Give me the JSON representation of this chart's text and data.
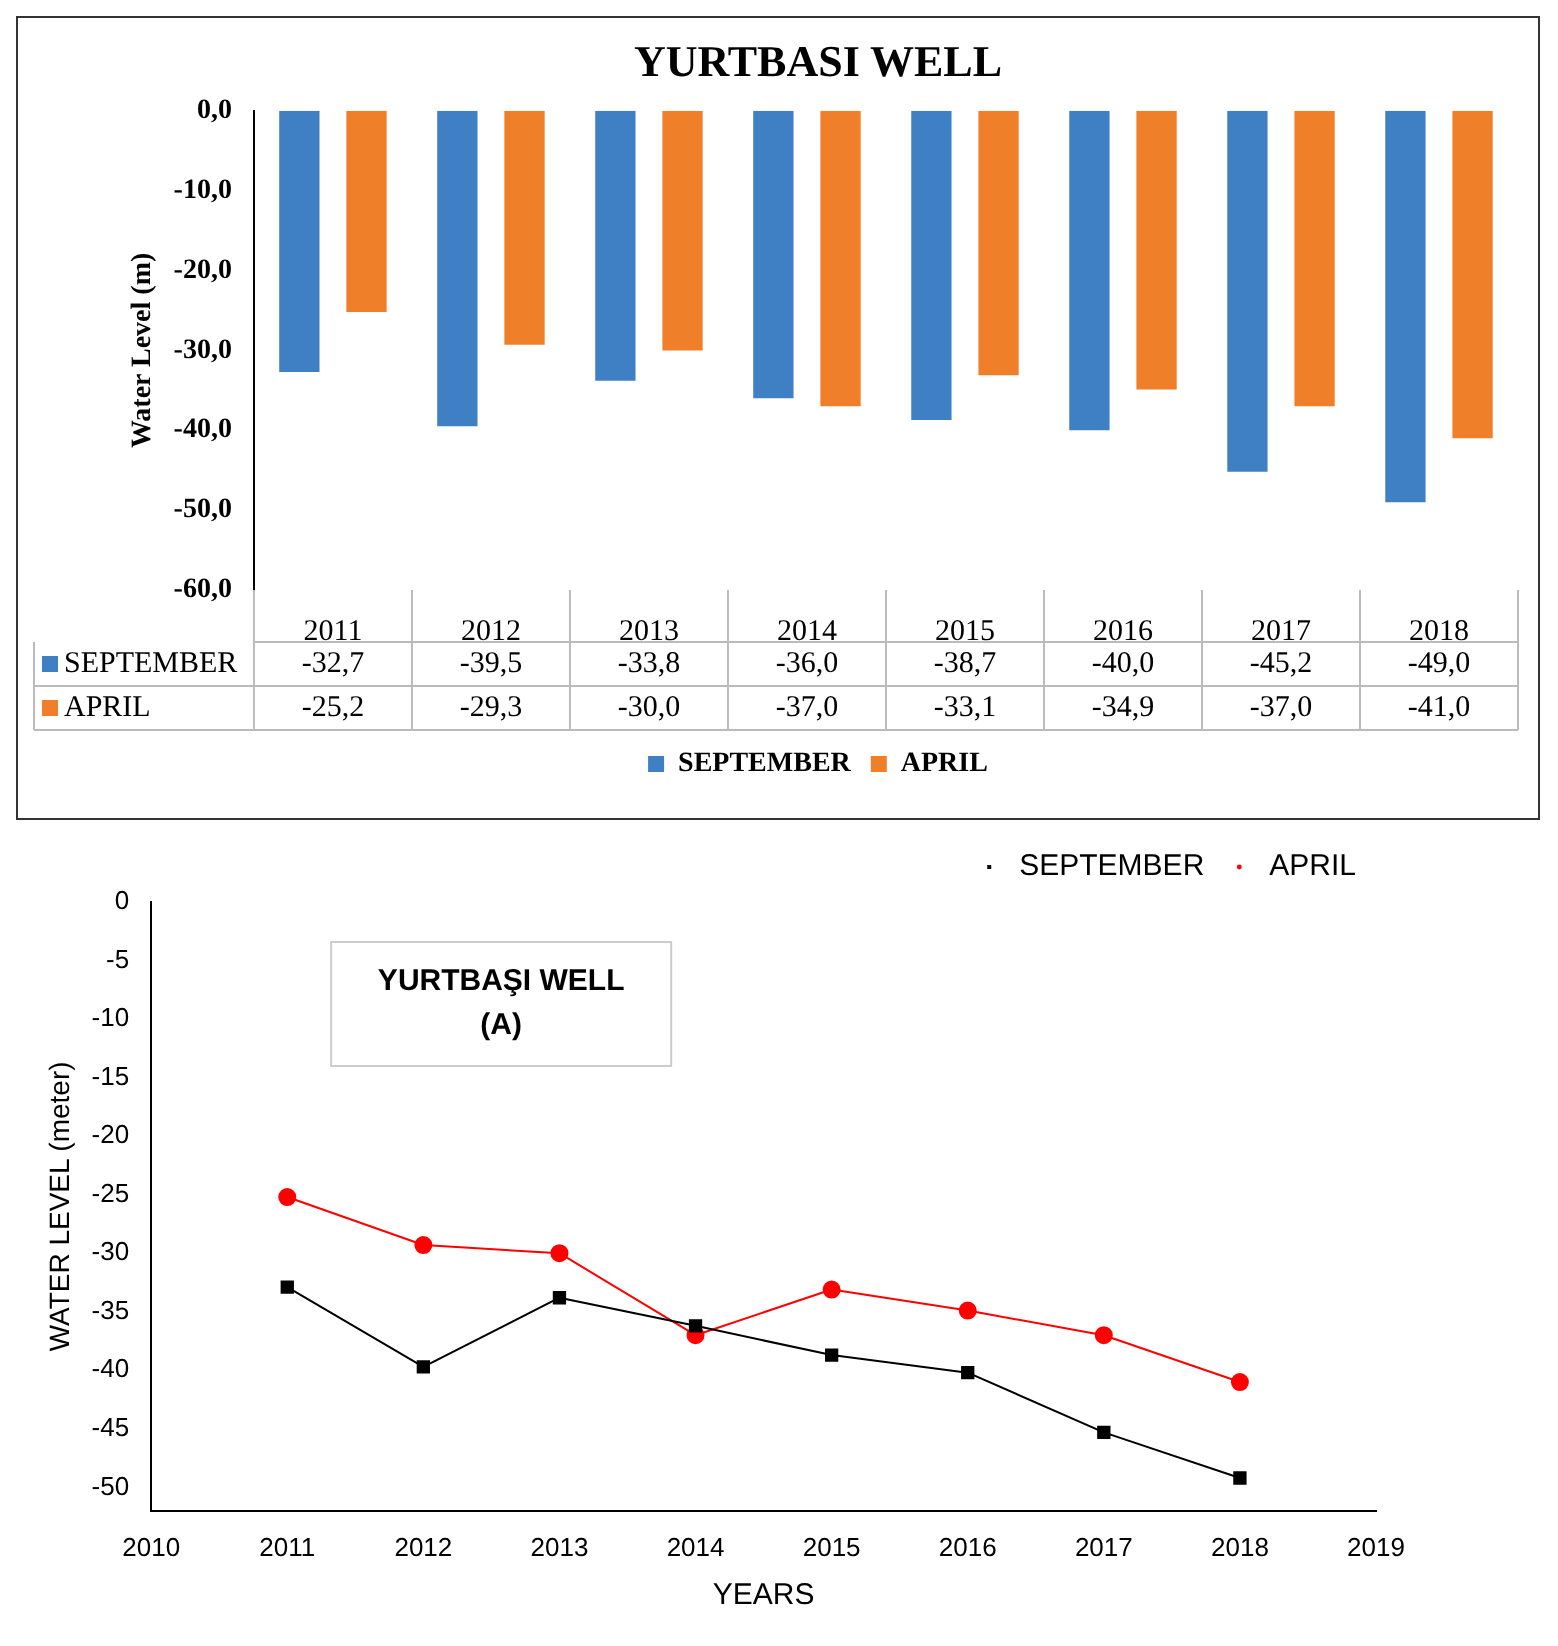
{
  "chart_data": [
    {
      "type": "bar",
      "title": "YURTBASI WELL",
      "ylabel": "Water Level (m)",
      "categories": [
        "2011",
        "2012",
        "2013",
        "2014",
        "2015",
        "2016",
        "2017",
        "2018"
      ],
      "series": [
        {
          "name": "SEPTEMBER",
          "color": "#3f7fc4",
          "values": [
            -32.7,
            -39.5,
            -33.8,
            -36.0,
            -38.7,
            -40.0,
            -45.2,
            -49.0
          ],
          "value_labels": [
            "-32,7",
            "-39,5",
            "-33,8",
            "-36,0",
            "-38,7",
            "-40,0",
            "-45,2",
            "-49,0"
          ]
        },
        {
          "name": "APRIL",
          "color": "#f07f2a",
          "values": [
            -25.2,
            -29.3,
            -30.0,
            -37.0,
            -33.1,
            -34.9,
            -37.0,
            -41.0
          ],
          "value_labels": [
            "-25,2",
            "-29,3",
            "-30,0",
            "-37,0",
            "-33,1",
            "-34,9",
            "-37,0",
            "-41,0"
          ]
        }
      ],
      "ylim": [
        -60,
        0
      ],
      "yticks": [
        {
          "value": 0,
          "label": "0,0"
        },
        {
          "value": -10,
          "label": "-10,0"
        },
        {
          "value": -20,
          "label": "-20,0"
        },
        {
          "value": -30,
          "label": "-30,0"
        },
        {
          "value": -40,
          "label": "-40,0"
        },
        {
          "value": -50,
          "label": "-50,0"
        },
        {
          "value": -60,
          "label": "-60,0"
        }
      ],
      "legend": "bottom"
    },
    {
      "type": "line",
      "title": "YURTBAŞI WELL",
      "subtitle": "(A)",
      "xlabel": "YEARS",
      "ylabel": "WATER LEVEL (meter)",
      "x": [
        2011,
        2012,
        2013,
        2014,
        2015,
        2016,
        2017,
        2018
      ],
      "series": [
        {
          "name": "SEPTEMBER",
          "color": "#000000",
          "marker": "square",
          "values": [
            -32.9,
            -39.7,
            -33.8,
            -36.2,
            -38.7,
            -40.2,
            -45.3,
            -49.2
          ]
        },
        {
          "name": "APRIL",
          "color": "#ff0000",
          "marker": "circle",
          "values": [
            -25.2,
            -29.3,
            -30.0,
            -37.0,
            -33.1,
            -34.9,
            -37.0,
            -41.0
          ]
        }
      ],
      "xlim": [
        2010,
        2019
      ],
      "xticks": [
        2010,
        2011,
        2012,
        2013,
        2014,
        2015,
        2016,
        2017,
        2018,
        2019
      ],
      "ylim": [
        -52,
        0
      ],
      "yticks": [
        0,
        -5,
        -10,
        -15,
        -20,
        -25,
        -30,
        -35,
        -40,
        -45,
        -50
      ],
      "legend": "top right"
    }
  ]
}
